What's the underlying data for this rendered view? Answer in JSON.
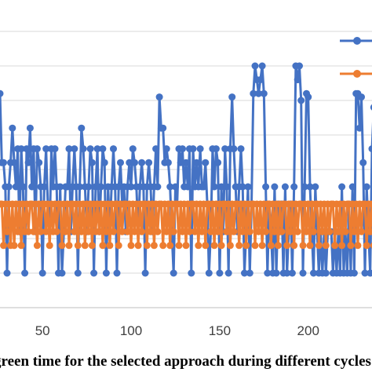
{
  "chart_data": {
    "type": "line",
    "title": "",
    "xlabel": "green time for the selected approach during different cycles",
    "ylabel": "",
    "xlim": [
      26,
      236
    ],
    "ylim": [
      0,
      8
    ],
    "x_ticks": [
      50,
      100,
      150,
      200
    ],
    "y_gridlines": [
      1,
      2,
      3,
      4,
      5,
      6,
      7,
      8
    ],
    "grid": true,
    "legend_position": "top-right",
    "series": [
      {
        "color": "#4472C4",
        "x_start": 26,
        "x_step": 1,
        "values": [
          6.2,
          4.2,
          4.2,
          3.5,
          1.0,
          3.5,
          4.2,
          5.2,
          4.2,
          3.5,
          4.6,
          2.2,
          4.6,
          3.5,
          1.0,
          4.6,
          4.2,
          5.2,
          3.5,
          4.6,
          2.2,
          4.6,
          4.2,
          3.5,
          1.0,
          3.5,
          4.6,
          3.0,
          2.2,
          4.6,
          3.5,
          4.6,
          3.5,
          1.0,
          3.5,
          1.0,
          2.2,
          3.5,
          3.5,
          4.6,
          2.2,
          3.5,
          4.6,
          3.5,
          1.0,
          3.5,
          5.2,
          4.6,
          3.5,
          2.2,
          3.5,
          4.6,
          4.2,
          1.0,
          3.5,
          4.6,
          2.2,
          3.5,
          4.6,
          4.2,
          1.0,
          3.5,
          2.2,
          3.5,
          4.6,
          3.5,
          1.0,
          3.5,
          4.2,
          3.0,
          3.5,
          2.2,
          3.5,
          4.2,
          3.5,
          4.6,
          4.2,
          3.5,
          2.2,
          3.5,
          4.2,
          3.5,
          1.0,
          3.5,
          4.2,
          3.5,
          2.2,
          3.5,
          4.6,
          3.5,
          6.1,
          5.2,
          5.2,
          4.2,
          4.6,
          4.2,
          3.5,
          2.2,
          1.0,
          3.5,
          3.0,
          4.6,
          4.2,
          4.6,
          3.5,
          4.2,
          3.5,
          4.6,
          1.0,
          4.6,
          3.5,
          4.2,
          3.5,
          4.6,
          3.5,
          3.5,
          4.2,
          3.0,
          1.0,
          2.2,
          4.6,
          3.5,
          4.6,
          4.2,
          1.0,
          3.5,
          2.2,
          4.6,
          3.5,
          1.0,
          4.6,
          6.1,
          4.6,
          3.5,
          2.2,
          3.5,
          4.6,
          3.5,
          1.0,
          2.2,
          3.5,
          1.0,
          3.0,
          6.2,
          7.0,
          6.6,
          6.2,
          6.6,
          7.0,
          6.2,
          3.5,
          1.0,
          3.0,
          2.2,
          1.0,
          3.5,
          1.0,
          3.0,
          2.2,
          3.0,
          1.0,
          3.5,
          1.0,
          2.2,
          3.0,
          1.0,
          3.5,
          7.0,
          6.6,
          7.0,
          6.0,
          1.0,
          3.5,
          6.2,
          6.1,
          3.5,
          2.2,
          1.0,
          3.5,
          2.2,
          1.0,
          2.2,
          1.0,
          2.2,
          1.0,
          2.2,
          2.2,
          2.2,
          1.0,
          2.2,
          1.0,
          2.2,
          1.0,
          3.5,
          1.0,
          2.2,
          1.0,
          3.0,
          1.0,
          3.5,
          1.0,
          6.2,
          6.2,
          5.2,
          6.1,
          4.2,
          1.0,
          3.5,
          2.2,
          1.0,
          4.6,
          5.8,
          4.6,
          3.5,
          2.2,
          3.5
        ]
      },
      {
        "color": "#ED7D31",
        "x_start": 26,
        "x_step": 1,
        "values": [
          3.0,
          3.0,
          1.8,
          3.0,
          2.2,
          3.0,
          1.8,
          3.0,
          1.8,
          3.0,
          2.2,
          3.0,
          1.8,
          3.0,
          2.2,
          3.0,
          2.2,
          3.0,
          3.0,
          2.2,
          3.0,
          1.8,
          3.0,
          2.2,
          3.0,
          3.0,
          2.2,
          3.0,
          1.8,
          3.0,
          2.2,
          3.0,
          2.2,
          3.0,
          3.0,
          1.8,
          3.0,
          2.2,
          3.0,
          1.8,
          3.0,
          3.0,
          2.2,
          3.0,
          1.8,
          3.0,
          2.2,
          3.0,
          1.8,
          3.0,
          2.2,
          3.0,
          1.8,
          3.0,
          2.2,
          3.0,
          2.2,
          3.0,
          1.8,
          3.0,
          2.2,
          3.0,
          1.8,
          3.0,
          2.2,
          3.0,
          3.0,
          1.8,
          3.0,
          2.2,
          3.0,
          3.0,
          2.2,
          3.0,
          1.8,
          3.0,
          2.2,
          3.0,
          1.8,
          3.0,
          2.2,
          3.0,
          3.0,
          1.8,
          3.0,
          2.2,
          3.0,
          1.8,
          3.0,
          2.2,
          3.0,
          3.0,
          1.8,
          3.0,
          2.2,
          3.0,
          1.8,
          3.0,
          2.2,
          3.0,
          3.0,
          1.8,
          3.0,
          2.2,
          3.0,
          1.8,
          3.0,
          2.2,
          3.0,
          3.0,
          2.2,
          3.0,
          1.8,
          3.0,
          2.2,
          3.0,
          1.8,
          3.0,
          3.0,
          2.2,
          3.0,
          1.8,
          3.0,
          2.2,
          3.0,
          1.8,
          3.0,
          3.0,
          2.2,
          3.0,
          1.8,
          3.0,
          2.2,
          3.0,
          3.0,
          1.8,
          3.0,
          2.2,
          3.0,
          1.8,
          3.0,
          2.2,
          3.0,
          3.0,
          1.8,
          3.0,
          2.2,
          3.0,
          1.8,
          3.0,
          2.2,
          3.0,
          3.0,
          1.8,
          3.0,
          2.2,
          3.0,
          1.8,
          3.0,
          2.2,
          3.0,
          3.0,
          1.8,
          3.0,
          2.2,
          3.0,
          1.8,
          3.0,
          2.2,
          3.0,
          3.0,
          1.8,
          3.0,
          2.2,
          3.0,
          1.8,
          3.0,
          2.2,
          3.0,
          3.0,
          1.8,
          3.0,
          2.2,
          3.0,
          1.8,
          3.0,
          2.2,
          3.0,
          3.0,
          1.8,
          3.0,
          2.2,
          3.0,
          1.8,
          3.0,
          2.2,
          3.0,
          3.0,
          1.8,
          3.0,
          2.2,
          3.0,
          1.8,
          3.0,
          2.2,
          3.0,
          3.0,
          1.8,
          3.0,
          2.2,
          3.0,
          1.8,
          3.0,
          2.2,
          3.0,
          3.0,
          1.8,
          3.0,
          2.2
        ]
      }
    ]
  }
}
